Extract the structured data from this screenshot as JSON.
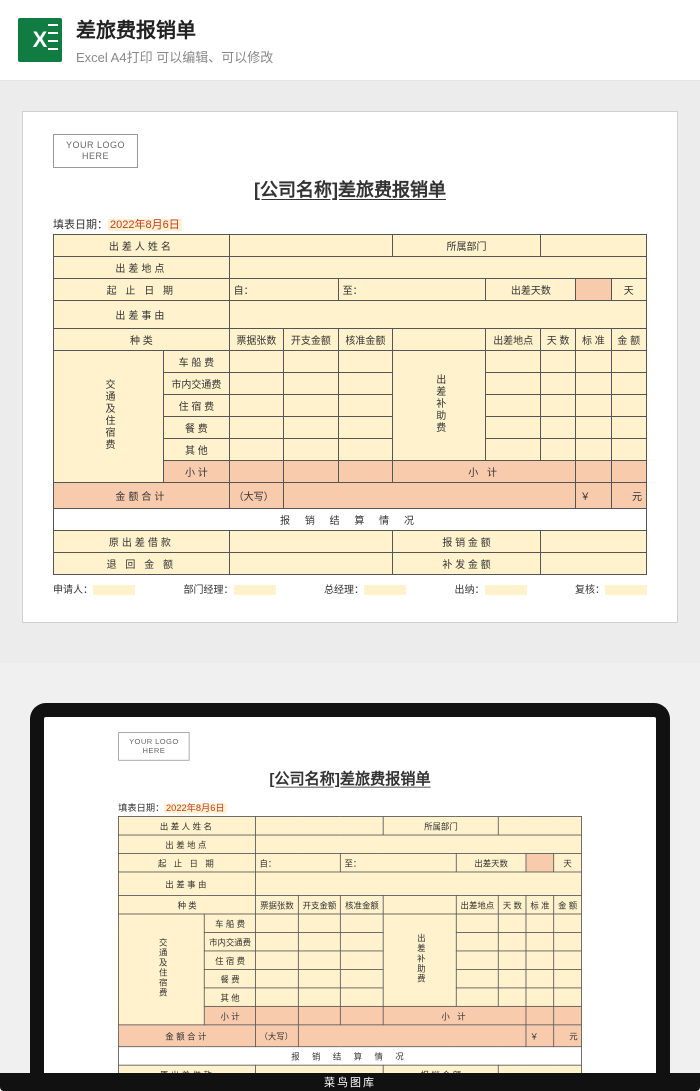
{
  "header": {
    "title": "差旅费报销单",
    "subtitle": "Excel A4打印 可以编辑、可以修改"
  },
  "doc": {
    "logo_line1": "YOUR LOGO",
    "logo_line2": "HERE",
    "title": "[公司名称]差旅费报销单",
    "fill_date_label": "填表日期：",
    "fill_date_value": "2022年8月6日",
    "row_name": "出差人姓名",
    "dept": "所属部门",
    "row_place": "出差地点",
    "row_dates": "起 止 日 期",
    "from_lbl": "自：",
    "to_lbl": "至：",
    "days_lbl": "出差天数",
    "days_unit": "天",
    "row_reason": "出差事由",
    "sec_left": "交通及住宿费",
    "sec_right": "出差补助费",
    "col_kind": "种  类",
    "col_tickets": "票据张数",
    "col_expense": "开支金额",
    "col_approved": "核准金额",
    "col_place2": "出差地点",
    "col_days2": "天  数",
    "col_standard": "标  准",
    "col_amount": "金  额",
    "kinds": [
      "车 船 费",
      "市内交通费",
      "住 宿 费",
      "餐    费",
      "其    他",
      "小    计"
    ],
    "subtotal_right": "小    计",
    "total_label": "金额合计",
    "daxie": "（大写）",
    "yen": "￥",
    "yuan": "元",
    "settle_header": "报 销 结 算 情 况",
    "orig_loan": "原出差借款",
    "reimburse_amt": "报 销 金 额",
    "refund_amt": "退 回 金 额",
    "supply_amt": "补 发 金 额",
    "sig": {
      "applicant": "申请人：",
      "dept_mgr": "部门经理：",
      "gm": "总经理：",
      "cashier": "出纳：",
      "reviewer": "复核："
    }
  },
  "laptop_brand": "菜鸟图库",
  "colors": {
    "accent_yellow": "#fff2cc",
    "accent_orange": "#f8cbad",
    "excel_green": "#107c41"
  }
}
